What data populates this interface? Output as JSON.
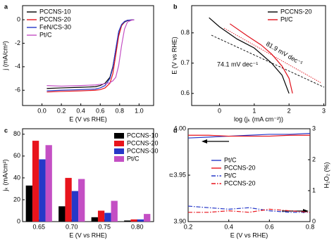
{
  "chart_data": [
    {
      "type": "line",
      "label": "a",
      "xlabel": "E (V vs RHE)",
      "ylabel": "j (mA/cm²)",
      "xlim": [
        -0.2,
        1.15
      ],
      "ylim": [
        -7.3,
        1.2
      ],
      "xticks": [
        {
          "value": 0,
          "label": "0.0"
        },
        0.2,
        0.4,
        0.6,
        0.8,
        {
          "value": 1,
          "label": "1.0"
        }
      ],
      "yticks": [
        -6,
        -4,
        -2,
        0
      ],
      "x": [
        0.05,
        0.2,
        0.4,
        0.55,
        0.6,
        0.65,
        0.7,
        0.73,
        0.76,
        0.79,
        0.82,
        0.85,
        0.88,
        0.92,
        0.95
      ],
      "series": [
        {
          "name": "PCCNS-10",
          "color": "#000000",
          "values": [
            -5.85,
            -5.8,
            -5.75,
            -5.7,
            -5.6,
            -5.4,
            -4.9,
            -4.0,
            -2.6,
            -1.3,
            -0.5,
            -0.2,
            -0.08,
            -0.02,
            0
          ]
        },
        {
          "name": "PCCNS-20",
          "color": "#e8141c",
          "values": [
            -6.15,
            -6.1,
            -6.05,
            -6.0,
            -5.95,
            -5.8,
            -5.4,
            -4.6,
            -3.0,
            -1.4,
            -0.5,
            -0.15,
            -0.05,
            -0.02,
            0
          ]
        },
        {
          "name": "FeN/CS-30",
          "color": "#2638c8",
          "values": [
            -6.05,
            -6.0,
            -5.95,
            -5.9,
            -5.8,
            -5.6,
            -5.0,
            -4.1,
            -2.5,
            -1.0,
            -0.4,
            -0.15,
            -0.05,
            -0.02,
            0
          ]
        },
        {
          "name": "Pt/C",
          "color": "#c44fc4",
          "values": [
            -5.6,
            -5.65,
            -5.6,
            -5.55,
            -5.5,
            -5.45,
            -5.35,
            -5.2,
            -4.9,
            -3.9,
            -2.2,
            -0.8,
            -0.2,
            -0.05,
            0
          ]
        }
      ]
    },
    {
      "type": "line",
      "label": "b",
      "xlabel": "log (jₖ (mA cm⁻²))",
      "ylabel": "E (V vs RHE)",
      "xlim": [
        -0.8,
        3.05
      ],
      "ylim": [
        0.56,
        0.89
      ],
      "xticks": [
        0,
        1,
        2,
        3
      ],
      "yticks": [
        0.6,
        0.7,
        0.8
      ],
      "series": [
        {
          "name": "PCCNS-20",
          "color": "#000000",
          "x": [
            -0.3,
            0,
            0.5,
            1.0,
            1.5,
            1.8,
            2.0
          ],
          "values": [
            0.85,
            0.82,
            0.78,
            0.75,
            0.7,
            0.66,
            0.6
          ]
        },
        {
          "name": "Pt/C",
          "color": "#e0101a",
          "x": [
            0.3,
            0.8,
            1.2,
            1.5,
            1.8,
            2.0,
            2.1
          ],
          "values": [
            0.83,
            0.79,
            0.76,
            0.73,
            0.69,
            0.65,
            0.6
          ]
        }
      ],
      "annotations": [
        {
          "text": "74.1 mV dec⁻¹",
          "color": "#000000"
        },
        {
          "text": "81.9 mV dec⁻¹",
          "color": "#e0101a"
        }
      ]
    },
    {
      "type": "bar",
      "label": "c",
      "xlabel": "E (V vs RHE)",
      "ylabel": "jₖ (mA/cm²)",
      "ylim": [
        0,
        85
      ],
      "yticks": [
        0,
        20,
        40,
        60,
        80
      ],
      "categories": [
        "0.65",
        "0.70",
        "0.75",
        "0.80"
      ],
      "series": [
        {
          "name": "PCCNS-10",
          "color": "#000000",
          "values": [
            33,
            14,
            4,
            1
          ]
        },
        {
          "name": "PCCNS-20",
          "color": "#e8141c",
          "values": [
            74,
            40,
            10,
            2
          ]
        },
        {
          "name": "PCCNS-30",
          "color": "#2638c8",
          "values": [
            57,
            28,
            8,
            2
          ]
        },
        {
          "name": "Pt/C",
          "color": "#c44fc4",
          "values": [
            70,
            39,
            19,
            7
          ]
        }
      ]
    },
    {
      "type": "line",
      "label": "d",
      "xlabel": "E (V vs RHE)",
      "ylabel": "n",
      "y2label": "H₂O₂ (%)",
      "xlim": [
        0.2,
        0.8
      ],
      "ylim": [
        3.9,
        4.0
      ],
      "y2lim": [
        0,
        3
      ],
      "xticks": [
        0.2,
        0.4,
        0.6,
        0.8
      ],
      "yticks": [
        {
          "value": 3.9,
          "label": "3.90"
        },
        3.95,
        {
          "value": 4,
          "label": "4.00"
        }
      ],
      "y2ticks": [
        0,
        1,
        2,
        3
      ],
      "x": [
        0.2,
        0.3,
        0.4,
        0.5,
        0.6,
        0.7,
        0.8
      ],
      "series": [
        {
          "name": "Pt/C",
          "color": "#2638c8",
          "dash": "solid",
          "values": [
            3.99,
            3.991,
            3.992,
            3.993,
            3.994,
            3.994,
            3.995
          ]
        },
        {
          "name": "PCCNS-20",
          "color": "#e8141c",
          "dash": "solid",
          "values": [
            3.993,
            3.993,
            3.992,
            3.992,
            3.992,
            3.993,
            3.993
          ]
        },
        {
          "name": "Pt/C",
          "color": "#2638c8",
          "dash": "dashdot",
          "axis": "y2",
          "values": [
            0.5,
            0.45,
            0.4,
            0.45,
            0.35,
            0.3,
            0.3
          ]
        },
        {
          "name": "PCCNS-20",
          "color": "#e8141c",
          "dash": "dashdot",
          "axis": "y2",
          "values": [
            0.3,
            0.3,
            0.35,
            0.3,
            0.4,
            0.35,
            0.3
          ]
        }
      ]
    }
  ]
}
